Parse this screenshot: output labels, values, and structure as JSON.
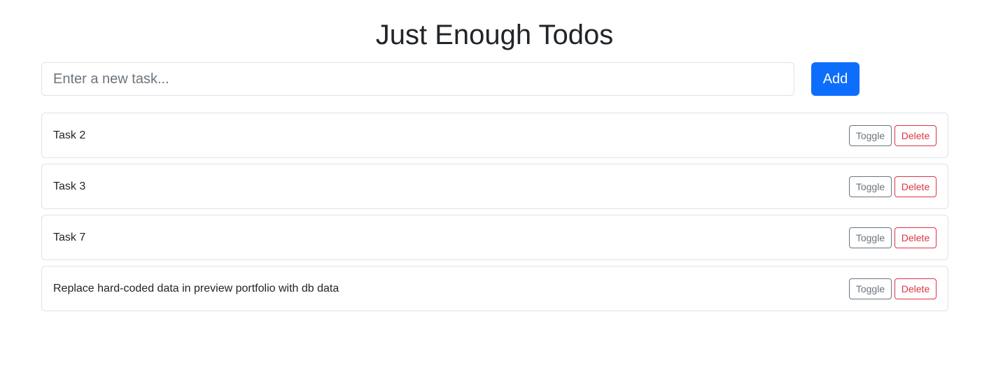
{
  "header": {
    "title": "Just Enough Todos"
  },
  "new_task": {
    "placeholder": "Enter a new task...",
    "value": "",
    "add_label": "Add"
  },
  "todos": [
    {
      "text": "Task 2",
      "toggle_label": "Toggle",
      "delete_label": "Delete"
    },
    {
      "text": "Task 3",
      "toggle_label": "Toggle",
      "delete_label": "Delete"
    },
    {
      "text": "Task 7",
      "toggle_label": "Toggle",
      "delete_label": "Delete"
    },
    {
      "text": "Replace hard-coded data in preview portfolio with db data",
      "toggle_label": "Toggle",
      "delete_label": "Delete"
    }
  ],
  "colors": {
    "primary": "#0d6efd",
    "secondary": "#6c757d",
    "danger": "#dc3545",
    "border": "#dee2e6",
    "text": "#212529"
  }
}
